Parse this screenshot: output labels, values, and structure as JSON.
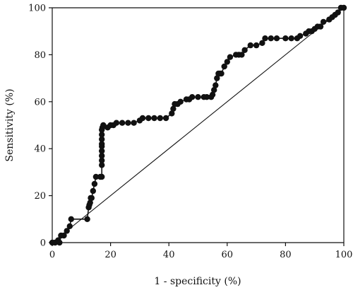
{
  "chart_data": {
    "type": "line",
    "title": "",
    "xlabel": "1 - specificity (%)",
    "ylabel": "Sensitivity (%)",
    "xlim": [
      0,
      100
    ],
    "ylim": [
      0,
      100
    ],
    "xticks": [
      0,
      20,
      40,
      60,
      80,
      100
    ],
    "yticks": [
      0,
      20,
      40,
      60,
      80,
      100
    ],
    "grid": false,
    "legend": "none",
    "box_frame": true,
    "diagonal_reference": true,
    "colors": {
      "curve": "#111111",
      "marker": "#111111",
      "axis": "#111111",
      "background": "#ffffff"
    },
    "series": [
      {
        "name": "",
        "x": [
          0,
          1,
          2,
          2.5,
          3,
          4,
          5,
          6,
          6.5,
          12,
          12.5,
          12.7,
          13,
          13.2,
          13.5,
          14,
          14.5,
          15,
          16.5,
          17,
          17,
          17,
          17,
          17,
          17,
          17,
          17,
          17,
          17,
          17.2,
          17.5,
          19,
          20,
          21,
          22,
          24,
          26,
          28,
          30,
          31,
          33,
          35,
          37,
          39,
          41,
          41.5,
          42,
          43,
          44,
          46,
          47,
          48,
          50,
          52,
          53,
          54.5,
          55,
          55.5,
          56,
          56.5,
          57,
          57.5,
          58,
          59,
          60,
          61,
          63,
          64,
          65,
          66,
          68,
          70,
          72,
          73,
          75,
          77,
          80,
          82,
          84,
          85,
          87,
          88,
          89,
          90,
          91,
          92,
          93,
          95,
          96,
          97,
          98,
          99,
          100
        ],
        "y": [
          0,
          0,
          1,
          0,
          3,
          3,
          5,
          7,
          10,
          10,
          15,
          16,
          17,
          19,
          19,
          22,
          25,
          28,
          28,
          28,
          33,
          35,
          37,
          39,
          41,
          42,
          44,
          46,
          48,
          49,
          50,
          49,
          50,
          50,
          51,
          51,
          51,
          51,
          52,
          53,
          53,
          53,
          53,
          53,
          55,
          57,
          59,
          59,
          60,
          61,
          61,
          62,
          62,
          62,
          62,
          62,
          63,
          65,
          67,
          70,
          72,
          72,
          72,
          75,
          77,
          79,
          80,
          80,
          80,
          82,
          84,
          84,
          85,
          87,
          87,
          87,
          87,
          87,
          87,
          88,
          89,
          90,
          90,
          91,
          92,
          92,
          94,
          95,
          96,
          97,
          98,
          100,
          100
        ]
      }
    ]
  }
}
